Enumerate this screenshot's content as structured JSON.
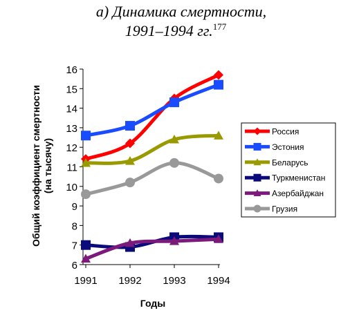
{
  "page": {
    "title_line1": "а) Динамика смертности,",
    "title_line2": "1991–1994 гг.",
    "title_footnote": "177"
  },
  "chart_data": {
    "type": "line",
    "title": "а) Динамика смертности, 1991–1994 гг.",
    "xlabel": "Годы",
    "ylabel": "Общий коэффициент смертности (на тысячу)",
    "ylabel_lines": [
      "Общий коэффициент смертности",
      "(на тысячу)"
    ],
    "x": [
      1991,
      1992,
      1993,
      1994
    ],
    "ylim": [
      6,
      16
    ],
    "yticks": [
      6,
      7,
      8,
      9,
      10,
      11,
      12,
      13,
      14,
      15,
      16
    ],
    "grid": false,
    "legend_position": "right",
    "series": [
      {
        "name": "Россия",
        "values": [
          11.4,
          12.2,
          14.5,
          15.7
        ],
        "color": "#ff0000",
        "marker": "diamond"
      },
      {
        "name": "Эстония",
        "values": [
          12.6,
          13.1,
          14.3,
          15.2
        ],
        "color": "#1a4cff",
        "marker": "square"
      },
      {
        "name": "Беларусь",
        "values": [
          11.2,
          11.3,
          12.4,
          12.6
        ],
        "color": "#999900",
        "marker": "triangle"
      },
      {
        "name": "Туркменистан",
        "values": [
          7.0,
          6.9,
          7.4,
          7.4
        ],
        "color": "#0a0a7a",
        "marker": "square"
      },
      {
        "name": "Азербайджан",
        "values": [
          6.3,
          7.1,
          7.2,
          7.3
        ],
        "color": "#7b1a7b",
        "marker": "triangle"
      },
      {
        "name": "Грузия",
        "values": [
          9.6,
          10.2,
          11.2,
          10.4
        ],
        "color": "#999999",
        "marker": "circle"
      }
    ]
  }
}
